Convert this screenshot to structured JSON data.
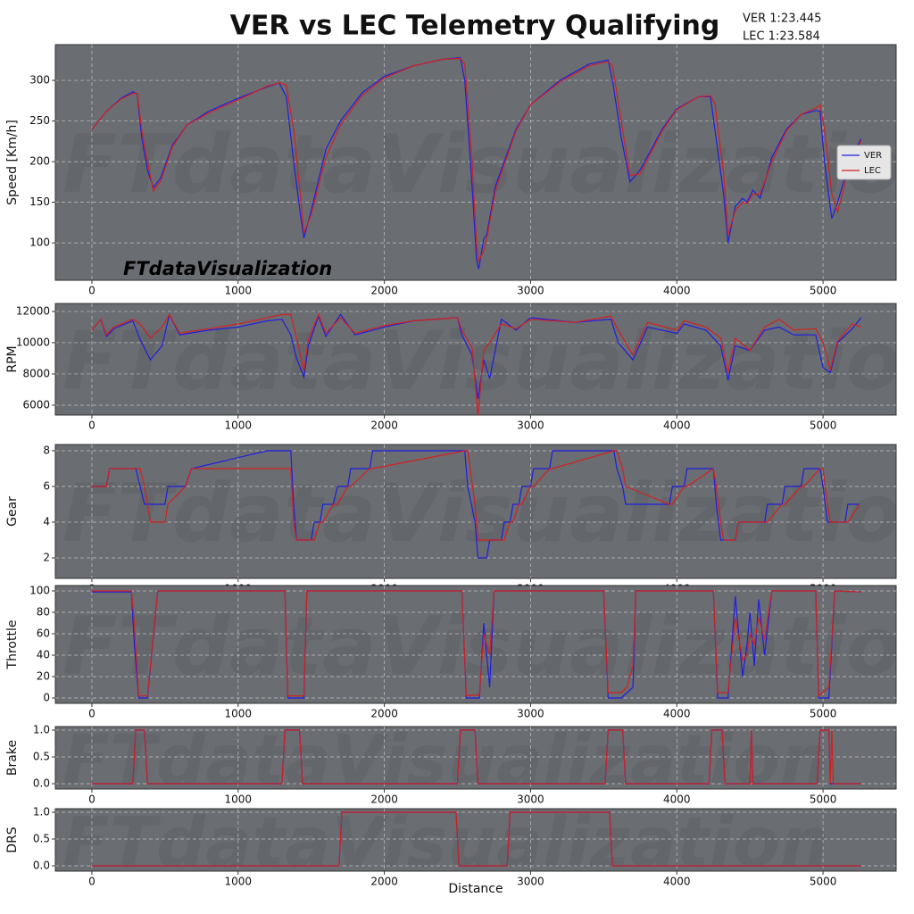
{
  "chart_data": [
    {
      "type": "line",
      "title": "VER vs LEC Telemetry Qualifying",
      "annotations": [
        "VER 1:23.445",
        "LEC 1:23.584"
      ],
      "watermark": "FTdataVisualization",
      "ylabel": "Speed [Km/h]",
      "legend": "right",
      "grid": true,
      "xlim": [
        -250,
        5500
      ],
      "xticks": [
        0,
        1000,
        2000,
        3000,
        4000,
        5000
      ],
      "ylim": [
        54,
        344
      ],
      "yticks": [
        100,
        150,
        200,
        250,
        300
      ],
      "x": [
        0,
        100,
        200,
        280,
        310,
        340,
        380,
        420,
        470,
        550,
        650,
        800,
        1000,
        1200,
        1280,
        1330,
        1380,
        1430,
        1450,
        1500,
        1600,
        1700,
        1850,
        2000,
        2200,
        2400,
        2520,
        2550,
        2600,
        2630,
        2645,
        2680,
        2700,
        2760,
        2900,
        3000,
        3200,
        3400,
        3530,
        3560,
        3620,
        3680,
        3750,
        3900,
        4000,
        4150,
        4230,
        4260,
        4320,
        4350,
        4400,
        4450,
        4480,
        4520,
        4570,
        4650,
        4750,
        4850,
        4950,
        4980,
        5010,
        5060,
        5100,
        5180,
        5260
      ],
      "series": [
        {
          "name": "VER",
          "color": "#1f1fe0",
          "values": [
            240,
            262,
            278,
            286,
            283,
            230,
            190,
            168,
            180,
            220,
            245,
            262,
            278,
            292,
            297,
            280,
            200,
            130,
            106,
            140,
            215,
            250,
            285,
            305,
            318,
            326,
            328,
            300,
            170,
            80,
            68,
            105,
            110,
            170,
            240,
            270,
            300,
            320,
            325,
            300,
            230,
            175,
            190,
            240,
            265,
            280,
            280,
            240,
            160,
            100,
            145,
            155,
            150,
            165,
            155,
            205,
            240,
            258,
            263,
            262,
            200,
            130,
            150,
            200,
            228
          ]
        },
        {
          "name": "LEC",
          "color": "#d42020",
          "values": [
            240,
            262,
            277,
            284,
            284,
            240,
            200,
            164,
            176,
            218,
            245,
            260,
            276,
            293,
            297,
            294,
            240,
            150,
            112,
            135,
            205,
            245,
            282,
            303,
            318,
            326,
            327,
            320,
            200,
            100,
            78,
            90,
            105,
            165,
            238,
            270,
            298,
            318,
            323,
            318,
            250,
            183,
            185,
            238,
            264,
            280,
            281,
            272,
            185,
            110,
            140,
            150,
            148,
            160,
            160,
            200,
            238,
            258,
            266,
            270,
            240,
            160,
            138,
            195,
            226
          ]
        }
      ]
    },
    {
      "type": "line",
      "ylabel": "RPM",
      "grid": true,
      "xlim": [
        -250,
        5500
      ],
      "xticks": [
        0,
        1000,
        2000,
        3000,
        4000,
        5000
      ],
      "ylim": [
        5370,
        12510
      ],
      "yticks": [
        6000,
        8000,
        10000,
        12000
      ],
      "x": [
        0,
        60,
        100,
        150,
        280,
        330,
        400,
        480,
        530,
        600,
        800,
        1000,
        1200,
        1300,
        1360,
        1400,
        1450,
        1480,
        1550,
        1600,
        1700,
        1800,
        2000,
        2200,
        2500,
        2530,
        2600,
        2640,
        2680,
        2720,
        2800,
        2900,
        3000,
        3300,
        3550,
        3600,
        3700,
        3800,
        4000,
        4050,
        4200,
        4300,
        4350,
        4400,
        4500,
        4600,
        4700,
        4800,
        4950,
        5000,
        5050,
        5100,
        5200,
        5260
      ],
      "series": [
        {
          "name": "VER",
          "color": "#1f1fe0",
          "values": [
            10800,
            11500,
            10400,
            10900,
            11400,
            10200,
            8900,
            9800,
            11800,
            10500,
            10800,
            11000,
            11400,
            11500,
            10500,
            9000,
            7800,
            9800,
            11700,
            10400,
            11800,
            10500,
            11000,
            11400,
            11600,
            10500,
            9200,
            6400,
            8900,
            7700,
            11500,
            10800,
            11600,
            11300,
            11500,
            10000,
            8900,
            11000,
            10600,
            11200,
            10800,
            9800,
            7600,
            9800,
            9500,
            10800,
            11000,
            10500,
            10500,
            8400,
            8100,
            10000,
            10900,
            11600
          ]
        },
        {
          "name": "LEC",
          "color": "#d42020",
          "values": [
            10800,
            11500,
            10500,
            11000,
            11500,
            11200,
            10300,
            11000,
            11800,
            10600,
            10900,
            11200,
            11600,
            11800,
            11800,
            10300,
            8200,
            10200,
            11800,
            10600,
            11600,
            10600,
            11100,
            11400,
            11600,
            10800,
            9700,
            5300,
            9500,
            10000,
            11200,
            10900,
            11500,
            11300,
            11700,
            10800,
            9200,
            11300,
            10800,
            11400,
            11000,
            10300,
            8100,
            10300,
            9500,
            11000,
            11500,
            10800,
            10900,
            10000,
            8300,
            10100,
            11200,
            11000
          ]
        }
      ]
    },
    {
      "type": "line",
      "ylabel": "Gear",
      "grid": true,
      "xlim": [
        -250,
        5500
      ],
      "xticks": [
        0,
        1000,
        2000,
        3000,
        4000,
        5000
      ],
      "ylim": [
        0.85,
        8.35
      ],
      "yticks": [
        2,
        4,
        6,
        8
      ],
      "x": [
        0,
        100,
        120,
        300,
        330,
        360,
        400,
        500,
        520,
        640,
        680,
        1200,
        1360,
        1380,
        1400,
        1500,
        1520,
        1560,
        1580,
        1650,
        1680,
        1750,
        1770,
        1900,
        1920,
        2550,
        2570,
        2620,
        2640,
        2700,
        2720,
        2800,
        2820,
        2860,
        2880,
        2920,
        2940,
        3000,
        3020,
        3130,
        3150,
        3570,
        3590,
        3630,
        3650,
        3950,
        3970,
        4050,
        4070,
        4250,
        4270,
        4300,
        4320,
        4400,
        4420,
        4600,
        4620,
        4720,
        4740,
        4850,
        4870,
        4980,
        5000,
        5030,
        5050,
        5150,
        5170,
        5250
      ],
      "series": [
        {
          "name": "VER",
          "color": "#1f1fe0",
          "values": [
            6,
            6,
            7,
            7,
            6,
            5,
            5,
            5,
            6,
            6,
            7,
            8,
            8,
            5,
            3,
            3,
            4,
            4,
            5,
            5,
            6,
            6,
            7,
            7,
            8,
            8,
            6,
            4,
            2,
            2,
            3,
            3,
            4,
            4,
            5,
            5,
            6,
            6,
            7,
            7,
            8,
            8,
            7,
            6,
            5,
            5,
            6,
            6,
            7,
            7,
            5,
            3,
            3,
            3,
            4,
            4,
            5,
            5,
            6,
            6,
            7,
            7,
            6,
            4,
            4,
            4,
            5,
            5
          ]
        },
        {
          "name": "LEC",
          "color": "#d42020",
          "values": [
            6,
            6,
            7,
            7,
            7,
            6,
            4,
            4,
            5,
            6,
            7,
            7,
            7,
            4,
            3,
            3,
            3,
            4,
            4,
            5,
            5,
            6,
            6,
            7,
            7,
            8,
            8,
            5,
            3,
            3,
            3,
            3,
            3,
            4,
            4,
            5,
            5,
            6,
            6,
            7,
            7,
            8,
            8,
            7,
            6,
            5,
            5,
            6,
            6,
            7,
            6,
            4,
            3,
            3,
            4,
            4,
            4,
            5,
            5,
            6,
            6,
            7,
            7,
            5,
            4,
            4,
            4,
            5
          ]
        }
      ]
    },
    {
      "type": "line",
      "ylabel": "Throttle",
      "grid": true,
      "xlim": [
        -250,
        5500
      ],
      "xticks": [
        0,
        1000,
        2000,
        3000,
        4000,
        5000
      ],
      "ylim": [
        -5,
        105
      ],
      "yticks": [
        0,
        20,
        40,
        60,
        80,
        100
      ],
      "x": [
        0,
        270,
        290,
        320,
        380,
        450,
        1320,
        1340,
        1450,
        1470,
        2530,
        2560,
        2650,
        2680,
        2720,
        2750,
        3500,
        3530,
        3620,
        3660,
        3700,
        3720,
        4250,
        4280,
        4350,
        4400,
        4450,
        4480,
        4500,
        4530,
        4560,
        4600,
        4650,
        4950,
        4970,
        5040,
        5080,
        5260
      ],
      "series": [
        {
          "name": "VER",
          "color": "#1f1fe0",
          "values": [
            99,
            99,
            50,
            0,
            0,
            100,
            100,
            0,
            0,
            100,
            100,
            0,
            0,
            70,
            10,
            100,
            100,
            0,
            0,
            5,
            10,
            100,
            100,
            0,
            0,
            95,
            20,
            50,
            80,
            30,
            92,
            40,
            100,
            100,
            0,
            0,
            100,
            99
          ]
        },
        {
          "name": "LEC",
          "color": "#d42020",
          "values": [
            100,
            100,
            70,
            2,
            2,
            100,
            100,
            2,
            2,
            100,
            100,
            2,
            3,
            60,
            40,
            100,
            100,
            5,
            5,
            10,
            30,
            100,
            100,
            5,
            5,
            75,
            35,
            40,
            60,
            50,
            75,
            55,
            100,
            100,
            2,
            10,
            100,
            99
          ]
        }
      ]
    },
    {
      "type": "line",
      "ylabel": "Brake",
      "grid": true,
      "xlim": [
        -250,
        5500
      ],
      "xticks": [
        0,
        1000,
        2000,
        3000,
        4000,
        5000
      ],
      "ylim": [
        -0.1,
        1.067
      ],
      "yticks": [
        {
          "value": 0,
          "label": "0.0"
        },
        {
          "value": 0.5,
          "label": "0.5"
        },
        {
          "value": 1,
          "label": "1.0"
        }
      ],
      "x": [
        0,
        280,
        300,
        360,
        380,
        1300,
        1320,
        1420,
        1440,
        2500,
        2520,
        2620,
        2640,
        3510,
        3530,
        3630,
        3650,
        4220,
        4240,
        4310,
        4330,
        4500,
        4510,
        4520,
        4960,
        4980,
        5040,
        5050,
        5060,
        5070,
        5260
      ],
      "series": [
        {
          "name": "VER",
          "color": "#1f1fe0",
          "values": [
            0,
            0,
            1,
            1,
            0,
            0,
            1,
            1,
            0,
            0,
            1,
            1,
            0,
            0,
            1,
            1,
            0,
            0,
            1,
            1,
            0,
            0,
            1,
            0,
            0,
            1,
            1,
            0,
            0,
            0,
            0
          ]
        },
        {
          "name": "LEC",
          "color": "#d42020",
          "values": [
            0,
            0,
            1,
            1,
            0,
            0,
            1,
            1,
            0,
            0,
            1,
            1,
            0,
            0,
            1,
            1,
            0,
            0,
            1,
            1,
            0,
            0,
            1,
            0,
            0,
            1,
            1,
            0,
            1,
            0,
            0
          ]
        }
      ]
    },
    {
      "type": "line",
      "ylabel": "DRS",
      "xlabel": "Distance",
      "grid": true,
      "xlim": [
        -250,
        5500
      ],
      "xticks": [
        0,
        1000,
        2000,
        3000,
        4000,
        5000
      ],
      "ylim": [
        -0.1,
        1.067
      ],
      "yticks": [
        {
          "value": 0,
          "label": "0.0"
        },
        {
          "value": 0.5,
          "label": "0.5"
        },
        {
          "value": 1,
          "label": "1.0"
        }
      ],
      "x": [
        0,
        1690,
        1710,
        2490,
        2510,
        2840,
        2860,
        3540,
        3560,
        5260
      ],
      "series": [
        {
          "name": "VER",
          "color": "#1f1fe0",
          "values": [
            0,
            0,
            1,
            1,
            0,
            0,
            1,
            1,
            0,
            0
          ]
        },
        {
          "name": "LEC",
          "color": "#d42020",
          "values": [
            0,
            0,
            1,
            1,
            0,
            0,
            1,
            1,
            0,
            0
          ]
        }
      ]
    }
  ]
}
